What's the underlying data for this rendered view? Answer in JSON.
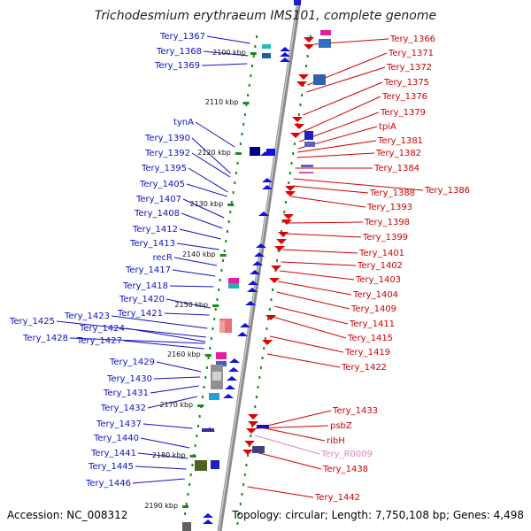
{
  "title": "Trichodesmium erythraeum IMS101, complete genome",
  "footer": {
    "accession": "Accession: NC_008312",
    "topology": "Topology: circular; Length: 7,750,108 bp; Genes: 4,498"
  },
  "colors": {
    "left_labels": "#1010c8",
    "right_labels": "#d00000",
    "rna_label": "#e080c0",
    "backbone": "#8a8a8a",
    "tick": "#1a8a1a"
  },
  "kbp_ticks": [
    "2100 kbp",
    "2110 kbp",
    "2120 kbp",
    "2130 kbp",
    "2140 kbp",
    "2150 kbp",
    "2160 kbp",
    "2170 kbp",
    "2180 kbp",
    "2190 kbp"
  ],
  "left_labels": [
    "Tery_1367",
    "Tery_1368",
    "Tery_1369",
    "tynA",
    "Tery_1390",
    "Tery_1392",
    "Tery_1395",
    "Tery_1405",
    "Tery_1407",
    "Tery_1408",
    "Tery_1412",
    "Tery_1413",
    "recR",
    "Tery_1417",
    "Tery_1418",
    "Tery_1420",
    "Tery_1421",
    "Tery_1423",
    "Tery_1425",
    "Tery_1424",
    "Tery_1428",
    "Tery_1427",
    "Tery_1429",
    "Tery_1430",
    "Tery_1431",
    "Tery_1432",
    "Tery_1437",
    "Tery_1440",
    "Tery_1441",
    "Tery_1445",
    "Tery_1446"
  ],
  "right_labels": [
    "Tery_1366",
    "Tery_1371",
    "Tery_1372",
    "Tery_1375",
    "Tery_1376",
    "Tery_1379",
    "tpiA",
    "Tery_1381",
    "Tery_1382",
    "Tery_1384",
    "Tery_1386",
    "Tery_1388",
    "Tery_1393",
    "Tery_1398",
    "Tery_1399",
    "Tery_1401",
    "Tery_1402",
    "Tery_1403",
    "Tery_1404",
    "Tery_1409",
    "Tery_1411",
    "Tery_1415",
    "Tery_1419",
    "Tery_1422",
    "Tery_1433",
    "psbZ",
    "ribH",
    "Tery_R0009",
    "Tery_1438",
    "Tery_1442"
  ]
}
